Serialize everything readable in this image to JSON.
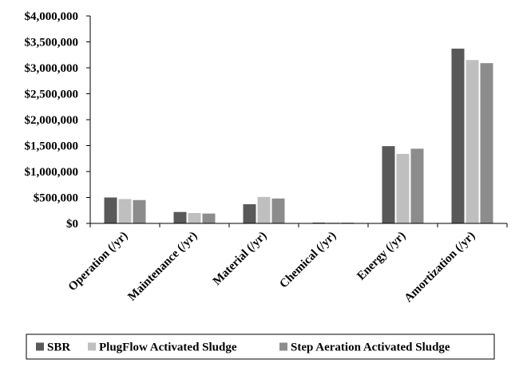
{
  "chart_data": {
    "type": "bar",
    "title": "",
    "xlabel": "",
    "ylabel": "",
    "categories": [
      "Operation (/yr)",
      "Maintenance (/yr)",
      "Material (/yr)",
      "Chemical (/yr)",
      "Energy (/yr)",
      "Amortization (/yr)"
    ],
    "series": [
      {
        "name": "SBR",
        "color": "#595959",
        "values": [
          500000,
          220000,
          370000,
          15000,
          1490000,
          3370000
        ]
      },
      {
        "name": "PlugFlow Activated Sludge",
        "color": "#bfbfbf",
        "values": [
          470000,
          200000,
          510000,
          10000,
          1340000,
          3150000
        ]
      },
      {
        "name": "Step Aeration Activated Sludge",
        "color": "#8c8c8c",
        "values": [
          450000,
          190000,
          480000,
          10000,
          1440000,
          3090000
        ]
      }
    ],
    "ylim": [
      0,
      4000000
    ],
    "yticks": [
      0,
      500000,
      1000000,
      1500000,
      2000000,
      2500000,
      3000000,
      3500000,
      4000000
    ],
    "ytick_labels": [
      "$0",
      "$500,000",
      "$1,000,000",
      "$1,500,000",
      "$2,000,000",
      "$2,500,000",
      "$3,000,000",
      "$3,500,000",
      "$4,000,000"
    ],
    "grid": false,
    "legend_position": "bottom"
  }
}
